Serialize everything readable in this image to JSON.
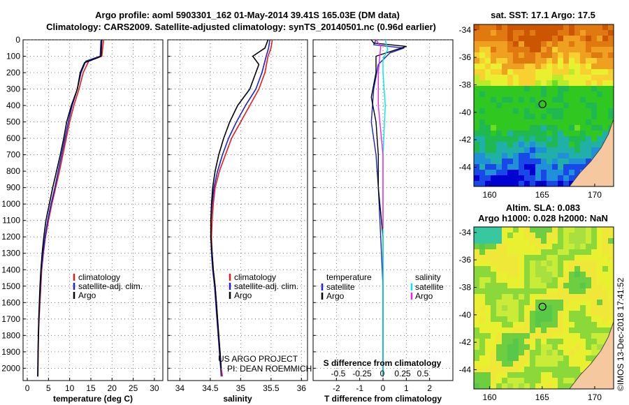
{
  "title": {
    "line1": "Argo profile: aoml 5903301_162 01-May-2014 39.41S 165.03E (DM data)",
    "line2": "Climatology: CARS2009. Satellite-adjusted climatology: synTS_20140501.nc (0.96d earlier)"
  },
  "colors": {
    "climatology": "#e41a1c",
    "satellite": "#1f1fd0",
    "argo": "#000000",
    "sat_sal": "#00e5ee",
    "argo_sal": "#ee22ee"
  },
  "credits": {
    "line1": "US ARGO PROJECT",
    "line2": "PI: DEAN ROEMMICH"
  },
  "timestamp": "©IMOS 13-Dec-2018 17:41:52",
  "chart_data": [
    {
      "id": "temperature",
      "type": "line",
      "xlabel": "temperature (deg C)",
      "ylabel": "",
      "xlim": [
        -1,
        32
      ],
      "ylim": [
        2075,
        0
      ],
      "xticks": [
        0,
        5,
        10,
        15,
        20,
        25,
        30
      ],
      "yticks": [
        0,
        100,
        200,
        300,
        400,
        500,
        600,
        700,
        800,
        900,
        1000,
        1100,
        1200,
        1300,
        1400,
        1500,
        1600,
        1700,
        1800,
        1900,
        2000
      ],
      "legend": [
        "climatology",
        "satellite-adj. clim.",
        "Argo"
      ],
      "series": [
        {
          "name": "climatology",
          "x": [
            18.0,
            17.8,
            17.6,
            14.5,
            13.2,
            12.2,
            11.0,
            10.0,
            9.2,
            8.4,
            7.6,
            6.7,
            5.8,
            5.0,
            4.3,
            3.8,
            3.4,
            3.2,
            3.0,
            2.8,
            2.65,
            2.55,
            2.5
          ],
          "y": [
            0,
            50,
            100,
            130,
            200,
            300,
            400,
            500,
            600,
            700,
            800,
            900,
            1000,
            1100,
            1200,
            1300,
            1400,
            1500,
            1600,
            1700,
            1800,
            1950,
            2050
          ]
        },
        {
          "name": "satellite-adj. clim.",
          "x": [
            17.4,
            17.3,
            17.2,
            13.8,
            12.7,
            11.8,
            10.6,
            9.7,
            8.9,
            8.1,
            7.3,
            6.5,
            5.6,
            4.8,
            4.2,
            3.7,
            3.3,
            3.1,
            2.9,
            2.75,
            2.6,
            2.5,
            2.45
          ],
          "y": [
            0,
            50,
            100,
            130,
            200,
            300,
            400,
            500,
            600,
            700,
            800,
            900,
            1000,
            1100,
            1200,
            1300,
            1400,
            1500,
            1600,
            1700,
            1800,
            1950,
            2050
          ]
        },
        {
          "name": "Argo",
          "x": [
            17.6,
            17.5,
            17.4,
            16.5,
            13.5,
            12.5,
            11.8,
            10.4,
            9.3,
            8.6,
            7.8,
            6.9,
            6.0,
            5.2,
            4.4,
            3.9,
            3.5,
            3.2,
            3.0,
            2.85,
            2.7,
            2.55,
            2.5
          ],
          "y": [
            0,
            50,
            100,
            110,
            140,
            200,
            300,
            400,
            500,
            600,
            700,
            800,
            900,
            1000,
            1100,
            1200,
            1300,
            1400,
            1500,
            1600,
            1700,
            1900,
            2050
          ]
        }
      ]
    },
    {
      "id": "salinity",
      "type": "line",
      "xlabel": "salinity",
      "ylabel": "",
      "xlim": [
        33.8,
        36.1
      ],
      "ylim": [
        2075,
        0
      ],
      "xticks": [
        34,
        34.5,
        35,
        35.5,
        36
      ],
      "legend": [
        "climatology",
        "satellite-adj. clim.",
        "Argo"
      ],
      "series": [
        {
          "name": "climatology",
          "x": [
            35.52,
            35.5,
            35.45,
            35.4,
            35.3,
            35.15,
            35.0,
            34.85,
            34.75,
            34.65,
            34.58,
            34.55,
            34.53,
            34.52,
            34.53,
            34.55,
            34.58,
            34.6,
            34.62,
            34.64,
            34.66,
            34.68,
            34.7
          ],
          "y": [
            0,
            50,
            100,
            200,
            300,
            400,
            500,
            600,
            700,
            800,
            900,
            1000,
            1100,
            1200,
            1300,
            1400,
            1500,
            1600,
            1700,
            1800,
            1900,
            2000,
            2050
          ]
        },
        {
          "name": "satellite-adj. clim.",
          "x": [
            35.48,
            35.46,
            35.42,
            35.35,
            35.25,
            35.08,
            34.93,
            34.8,
            34.7,
            34.62,
            34.56,
            34.53,
            34.51,
            34.51,
            34.52,
            34.54,
            34.57,
            34.59,
            34.61,
            34.63,
            34.65,
            34.67,
            34.68
          ],
          "y": [
            0,
            50,
            100,
            200,
            300,
            400,
            500,
            600,
            700,
            800,
            900,
            1000,
            1100,
            1200,
            1300,
            1400,
            1500,
            1600,
            1700,
            1800,
            1900,
            2000,
            2050
          ]
        },
        {
          "name": "Argo",
          "x": [
            35.45,
            35.4,
            35.2,
            35.3,
            35.15,
            34.95,
            34.82,
            34.72,
            34.64,
            34.58,
            34.54,
            34.52,
            34.51,
            34.51,
            34.53,
            34.55,
            34.58,
            34.6,
            34.62,
            34.64,
            34.66,
            34.68
          ],
          "y": [
            0,
            50,
            100,
            150,
            300,
            400,
            500,
            600,
            700,
            800,
            900,
            1000,
            1100,
            1200,
            1300,
            1400,
            1500,
            1600,
            1700,
            1800,
            1900,
            2000
          ]
        }
      ]
    },
    {
      "id": "difference",
      "type": "line",
      "xlabel": "T difference from climatology",
      "xlabel2": "S difference from climatology",
      "xlim": [
        -3,
        3
      ],
      "ylim": [
        2075,
        0
      ],
      "xticks": [
        -2,
        -1,
        0,
        1,
        2
      ],
      "xticks2_labels": [
        "-0.5",
        "-0.25",
        "0",
        "0.25",
        "0.5"
      ],
      "legend_t": {
        "title": "temperature",
        "items": [
          "satellite",
          "Argo"
        ]
      },
      "legend_s": {
        "title": "salinity",
        "items": [
          "satellite",
          "Argo"
        ]
      },
      "series": [
        {
          "name": "T satellite",
          "x": [
            -0.3,
            -0.4,
            0.9,
            0.3,
            -0.2,
            -0.4,
            -0.5,
            -0.3,
            -0.2,
            -0.1,
            0,
            0,
            0
          ],
          "y": [
            0,
            30,
            50,
            80,
            150,
            300,
            500,
            700,
            900,
            1200,
            1500,
            1800,
            2050
          ]
        },
        {
          "name": "T Argo",
          "x": [
            -0.5,
            -0.4,
            1.0,
            -0.3,
            -0.3,
            -0.5,
            -0.3,
            -0.2,
            -0.2,
            0,
            0,
            0,
            0
          ],
          "y": [
            0,
            20,
            40,
            100,
            200,
            350,
            500,
            700,
            900,
            1200,
            1500,
            1800,
            2050
          ]
        },
        {
          "name": "S satellite",
          "x": [
            0.1,
            0.2,
            0.0,
            0.0,
            0.1,
            0.0,
            0.0,
            0.0,
            0.0,
            0.0
          ],
          "y": [
            0,
            60,
            120,
            200,
            400,
            700,
            1000,
            1400,
            1800,
            2050
          ]
        },
        {
          "name": "S Argo",
          "x": [
            -0.3,
            -0.1,
            -0.2,
            -0.2,
            0.0,
            0.0
          ],
          "y": [
            0,
            40,
            200,
            400,
            700,
            1150
          ]
        }
      ]
    },
    {
      "id": "sst_map",
      "type": "heatmap",
      "title": "sat. SST: 17.1 Argo: 17.5",
      "xticks": [
        160,
        165,
        170
      ],
      "yticks": [
        -34,
        -36,
        -38,
        -40,
        -42,
        -44
      ],
      "xlim": [
        158.5,
        171.8
      ],
      "ylim": [
        -45.4,
        -33.6
      ],
      "marker": {
        "lon": 165.03,
        "lat": -39.41
      }
    },
    {
      "id": "sla_map",
      "type": "heatmap",
      "title": "Altim. SLA: 0.083",
      "title2": "Argo h1000: 0.028 h2000: NaN",
      "xticks": [
        160,
        165,
        170
      ],
      "yticks": [
        -34,
        -36,
        -38,
        -40,
        -42,
        -44
      ],
      "xlim": [
        158.5,
        171.8
      ],
      "ylim": [
        -45.4,
        -33.6
      ],
      "marker": {
        "lon": 165.03,
        "lat": -39.41
      }
    }
  ]
}
